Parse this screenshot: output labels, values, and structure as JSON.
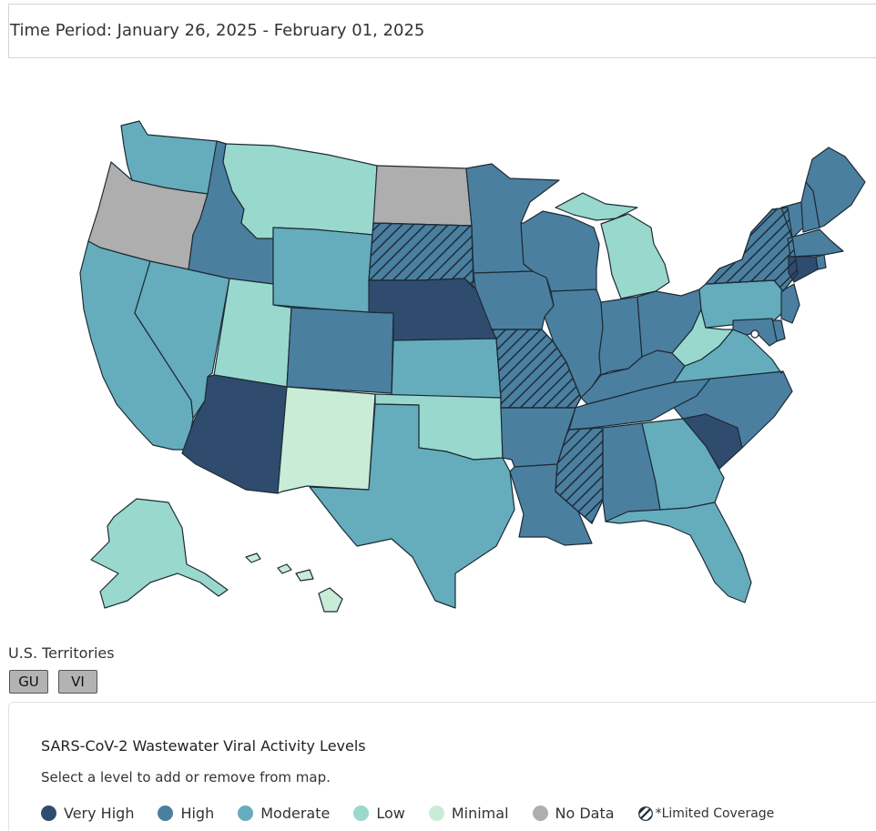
{
  "header": {
    "time_period": "Time Period: January 26, 2025 - February 01, 2025"
  },
  "colors": {
    "very_high": "#2f4c6f",
    "high": "#4b7fa0",
    "moderate": "#65adbc",
    "low": "#99d8cd",
    "minimal": "#c9ecd6",
    "no_data": "#aeaeae",
    "limited_coverage_hatch": "#1d2b36"
  },
  "map": {
    "states": [
      {
        "abbr": "WA",
        "level": "moderate"
      },
      {
        "abbr": "OR",
        "level": "no_data"
      },
      {
        "abbr": "CA",
        "level": "moderate"
      },
      {
        "abbr": "NV",
        "level": "moderate"
      },
      {
        "abbr": "ID",
        "level": "high"
      },
      {
        "abbr": "MT",
        "level": "low"
      },
      {
        "abbr": "WY",
        "level": "moderate"
      },
      {
        "abbr": "UT",
        "level": "low"
      },
      {
        "abbr": "AZ",
        "level": "very_high"
      },
      {
        "abbr": "CO",
        "level": "high"
      },
      {
        "abbr": "NM",
        "level": "minimal"
      },
      {
        "abbr": "ND",
        "level": "no_data"
      },
      {
        "abbr": "SD",
        "level": "high",
        "limited_coverage": true
      },
      {
        "abbr": "NE",
        "level": "very_high"
      },
      {
        "abbr": "KS",
        "level": "moderate"
      },
      {
        "abbr": "OK",
        "level": "low"
      },
      {
        "abbr": "TX",
        "level": "moderate"
      },
      {
        "abbr": "MN",
        "level": "high"
      },
      {
        "abbr": "IA",
        "level": "high"
      },
      {
        "abbr": "MO",
        "level": "high",
        "limited_coverage": true
      },
      {
        "abbr": "AR",
        "level": "high"
      },
      {
        "abbr": "LA",
        "level": "high"
      },
      {
        "abbr": "WI",
        "level": "high"
      },
      {
        "abbr": "IL",
        "level": "high"
      },
      {
        "abbr": "MI",
        "level": "low"
      },
      {
        "abbr": "IN",
        "level": "high"
      },
      {
        "abbr": "OH",
        "level": "high"
      },
      {
        "abbr": "KY",
        "level": "high"
      },
      {
        "abbr": "TN",
        "level": "high"
      },
      {
        "abbr": "MS",
        "level": "high",
        "limited_coverage": true
      },
      {
        "abbr": "AL",
        "level": "high"
      },
      {
        "abbr": "GA",
        "level": "moderate"
      },
      {
        "abbr": "FL",
        "level": "moderate"
      },
      {
        "abbr": "SC",
        "level": "very_high"
      },
      {
        "abbr": "NC",
        "level": "high"
      },
      {
        "abbr": "VA",
        "level": "moderate"
      },
      {
        "abbr": "WV",
        "level": "low"
      },
      {
        "abbr": "PA",
        "level": "moderate"
      },
      {
        "abbr": "NY",
        "level": "high",
        "limited_coverage": true
      },
      {
        "abbr": "VT",
        "level": "high"
      },
      {
        "abbr": "NH",
        "level": "high"
      },
      {
        "abbr": "ME",
        "level": "high"
      },
      {
        "abbr": "MA",
        "level": "high"
      },
      {
        "abbr": "RI",
        "level": "high"
      },
      {
        "abbr": "CT",
        "level": "very_high"
      },
      {
        "abbr": "NJ",
        "level": "high"
      },
      {
        "abbr": "DE",
        "level": "high"
      },
      {
        "abbr": "MD",
        "level": "high"
      },
      {
        "abbr": "DC",
        "level": "moderate"
      },
      {
        "abbr": "AK",
        "level": "low"
      },
      {
        "abbr": "HI",
        "level": "minimal"
      }
    ]
  },
  "territories": {
    "label": "U.S. Territories",
    "items": [
      {
        "label": "GU",
        "level": "no_data"
      },
      {
        "label": "VI",
        "level": "no_data"
      }
    ]
  },
  "legend": {
    "title": "SARS-CoV-2 Wastewater Viral Activity Levels",
    "subtitle": "Select a level to add or remove from map.",
    "items": [
      {
        "label": "Very High",
        "color": "#2f4c6f"
      },
      {
        "label": "High",
        "color": "#4b7fa0"
      },
      {
        "label": "Moderate",
        "color": "#65adbc"
      },
      {
        "label": "Low",
        "color": "#99d8cd"
      },
      {
        "label": "Minimal",
        "color": "#c9ecd6"
      },
      {
        "label": "No Data",
        "color": "#aeaeae"
      }
    ],
    "limited_label": "*Limited Coverage"
  }
}
